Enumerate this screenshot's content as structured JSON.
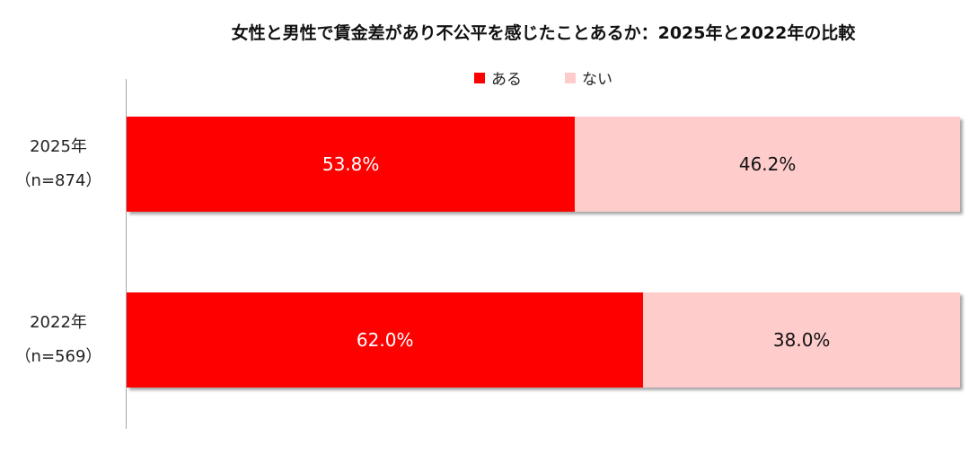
{
  "chart_data": {
    "type": "bar",
    "orientation": "horizontal",
    "stacked": "100%",
    "title": "女性と男性で賃金差があり不公平を感じたことあるか：2025年と2022年の比較",
    "legend": {
      "position": "top"
    },
    "categories": [
      {
        "year": "2025年",
        "n": "（n=874）"
      },
      {
        "year": "2022年",
        "n": "（n=569）"
      }
    ],
    "series": [
      {
        "name": "ある",
        "color": "#ff0000",
        "label_color": "#ffffff",
        "values": [
          53.8,
          62.0
        ],
        "labels": [
          "53.8%",
          "62.0%"
        ]
      },
      {
        "name": "ない",
        "color": "#ffcccc",
        "label_color": "#111111",
        "values": [
          46.2,
          38.0
        ],
        "labels": [
          "46.2%",
          "38.0%"
        ]
      }
    ]
  }
}
